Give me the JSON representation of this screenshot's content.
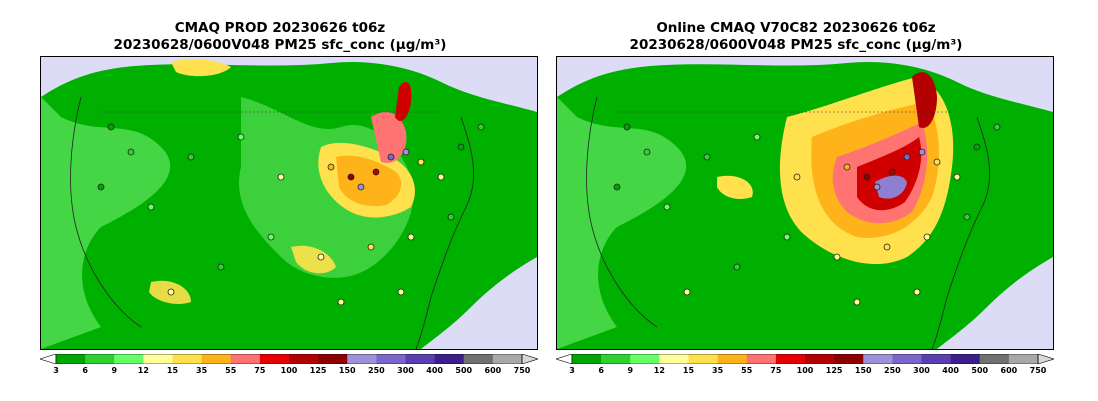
{
  "panels": [
    {
      "title_line1": "CMAQ PROD 20230626 t06z",
      "title_line2": "20230628/0600V048 PM25 sfc_conc (μg/m³)"
    },
    {
      "title_line1": "Online CMAQ V70C82 20230626 t06z",
      "title_line2": "20230628/0600V048 PM25 sfc_conc (μg/m³)"
    }
  ],
  "colorbar": {
    "levels": [
      "3",
      "6",
      "9",
      "12",
      "15",
      "35",
      "55",
      "75",
      "100",
      "125",
      "150",
      "250",
      "300",
      "400",
      "500",
      "600",
      "750"
    ],
    "colors": [
      "#00a600",
      "#2ed12e",
      "#66ff66",
      "#ffff99",
      "#ffe14d",
      "#ffb31a",
      "#ff7373",
      "#e60000",
      "#b30000",
      "#8c0000",
      "#9f91d9",
      "#7a67c9",
      "#5a3fb0",
      "#3b1f8a",
      "#707070",
      "#a8a8a8",
      "#d8d8d8"
    ]
  },
  "map_colors": {
    "background": "#dcdcf6",
    "low": "#00b000",
    "light": "#55e055",
    "yellow": "#ffe14d",
    "orange": "#ffb31a",
    "pink": "#ff7373",
    "red": "#d00000",
    "purple": "#8f7fd0"
  }
}
